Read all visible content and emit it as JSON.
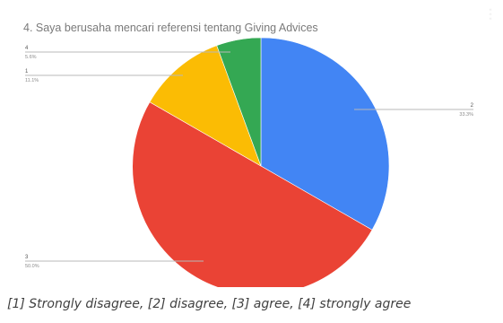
{
  "chart_data": {
    "type": "pie",
    "title": "4. Saya berusaha mencari referensi tentang Giving Advices",
    "slices": [
      {
        "label": "2",
        "value": 33.3,
        "value_label": "33.3%",
        "color": "#4285f4"
      },
      {
        "label": "3",
        "value": 50.0,
        "value_label": "50.0%",
        "color": "#ea4335"
      },
      {
        "label": "1",
        "value": 11.1,
        "value_label": "11.1%",
        "color": "#fbbc04"
      },
      {
        "label": "4",
        "value": 5.6,
        "value_label": "5.6%",
        "color": "#34a853"
      }
    ],
    "legend": "none"
  },
  "menu_icon": "more-vert-icon",
  "caption": "[1] Strongly disagree, [2] disagree, [3] agree, [4] strongly agree"
}
